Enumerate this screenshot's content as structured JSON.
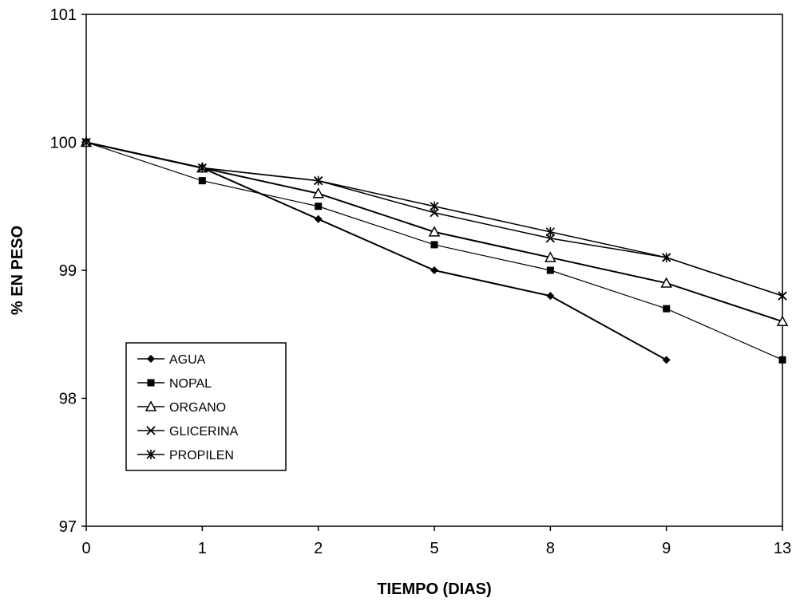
{
  "chart_data": {
    "type": "line",
    "title": "",
    "xlabel": "TIEMPO (DIAS)",
    "ylabel": "% EN PESO",
    "x": [
      "0",
      "1",
      "2",
      "5",
      "8",
      "9",
      "13"
    ],
    "yticks": [
      "97",
      "98",
      "99",
      "100",
      "101"
    ],
    "ylim": [
      97,
      101
    ],
    "grid": false,
    "legend_position": "lower-left",
    "series": [
      {
        "name": "AGUA",
        "marker": "diamond",
        "values": [
          100,
          99.8,
          99.4,
          99.0,
          98.8,
          98.3,
          null
        ]
      },
      {
        "name": "NOPAL",
        "marker": "square",
        "values": [
          100,
          99.7,
          99.5,
          99.2,
          99.0,
          98.7,
          98.3
        ]
      },
      {
        "name": "ORGANO",
        "marker": "triangle",
        "values": [
          100,
          99.8,
          99.6,
          99.3,
          99.1,
          98.9,
          98.6
        ]
      },
      {
        "name": "GLICERINA",
        "marker": "x",
        "values": [
          100,
          99.8,
          99.7,
          99.45,
          99.25,
          99.1,
          98.8
        ]
      },
      {
        "name": "PROPILEN",
        "marker": "asterisk",
        "values": [
          100,
          99.8,
          99.7,
          99.5,
          99.3,
          99.1,
          98.8
        ]
      }
    ]
  }
}
